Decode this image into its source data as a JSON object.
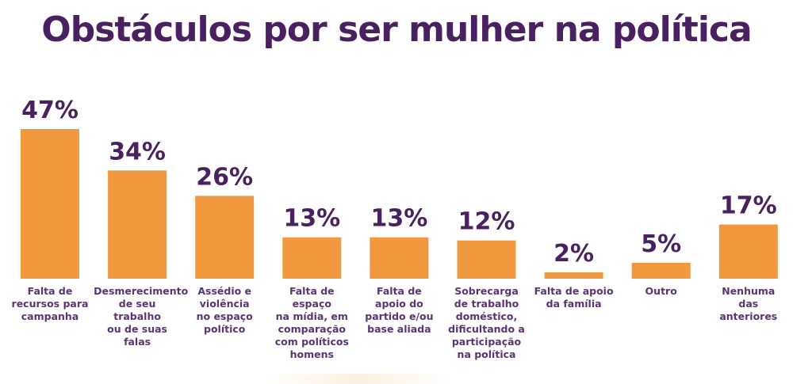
{
  "chart_data": {
    "type": "bar",
    "title": "Obstáculos por ser mulher na política",
    "xlabel": "",
    "ylabel": "",
    "ylim": [
      0,
      50
    ],
    "grid": false,
    "legend": "none",
    "bar_color": "#f0993f",
    "label_color": "#4a2160",
    "categories": [
      "Falta de recursos para campanha",
      "Desmerecimento de seu trabalho ou de suas falas",
      "Assédio e violência no espaço político",
      "Falta de espaço na mídia, em comparação com políticos homens",
      "Falta de apoio do partido e/ou base aliada",
      "Sobrecarga de trabalho doméstico, dificultando a participação na política",
      "Falta de apoio da família",
      "Outro",
      "Nenhuma das anteriores"
    ],
    "values": [
      47,
      34,
      26,
      13,
      13,
      12,
      2,
      5,
      17
    ],
    "data_labels": [
      "47%",
      "34%",
      "26%",
      "13%",
      "13%",
      "12%",
      "2%",
      "5%",
      "17%"
    ],
    "category_label_lines": [
      [
        "Falta de",
        "recursos para",
        "campanha"
      ],
      [
        "Desmerecimento",
        "de seu trabalho",
        "ou de suas falas"
      ],
      [
        "Assédio e",
        "violência",
        "no espaço",
        "político"
      ],
      [
        "Falta de espaço",
        "na mídia, em",
        "comparação",
        "com políticos",
        "homens"
      ],
      [
        "Falta de",
        "apoio do",
        "partido e/ou",
        "base aliada"
      ],
      [
        "Sobrecarga",
        "de trabalho",
        "doméstico,",
        "dificultando a",
        "participação",
        "na política"
      ],
      [
        "Falta de apoio",
        "da família"
      ],
      [
        "Outro"
      ],
      [
        "Nenhuma",
        "das",
        "anteriores"
      ]
    ]
  }
}
